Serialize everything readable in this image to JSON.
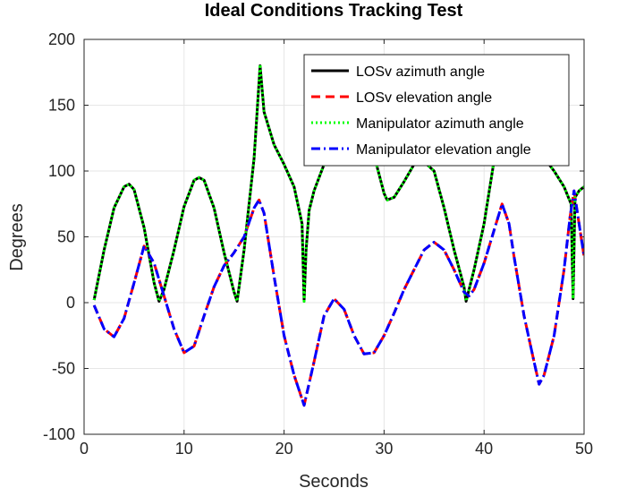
{
  "chart_data": {
    "type": "line",
    "title": "Ideal Conditions Tracking Test",
    "xlabel": "Seconds",
    "ylabel": "Degrees",
    "xlim": [
      0,
      50
    ],
    "ylim": [
      -100,
      200
    ],
    "xticks": [
      0,
      10,
      20,
      30,
      40,
      50
    ],
    "yticks": [
      -100,
      -50,
      0,
      50,
      100,
      150,
      200
    ],
    "grid": true,
    "legend_position": "top-right",
    "series": [
      {
        "name": "LOSv azimuth angle",
        "color": "#000000",
        "style": "solid",
        "x": [
          1,
          2,
          3,
          4,
          4.5,
          5,
          6,
          7,
          7.5,
          8,
          9,
          10,
          11,
          11.5,
          12,
          13,
          14,
          15,
          15.3,
          16,
          17,
          17.6,
          18,
          19,
          20,
          21,
          21.8,
          22,
          22.2,
          22.5,
          23,
          24,
          25,
          26,
          27,
          28,
          29,
          30,
          30.3,
          31,
          32,
          33,
          34,
          35,
          36,
          37,
          38,
          38.2,
          39,
          40,
          41,
          42,
          43,
          44,
          45,
          46,
          47,
          48,
          48.7,
          48.9,
          49.1,
          49.5,
          50
        ],
        "y": [
          2,
          40,
          72,
          88,
          90,
          86,
          57,
          15,
          1,
          10,
          40,
          73,
          93,
          95,
          93,
          72,
          38,
          8,
          1,
          40,
          110,
          180,
          145,
          120,
          105,
          88,
          60,
          1,
          40,
          70,
          85,
          105,
          125,
          140,
          150,
          140,
          112,
          83,
          78,
          80,
          92,
          105,
          107,
          100,
          72,
          40,
          12,
          1,
          25,
          60,
          108,
          128,
          140,
          130,
          118,
          110,
          100,
          88,
          75,
          3,
          80,
          85,
          88
        ]
      },
      {
        "name": "LOSv elevation angle",
        "color": "#ff0000",
        "style": "dashed",
        "x": [
          1,
          2,
          3,
          4,
          5,
          6,
          7,
          8,
          9,
          10,
          11,
          12,
          13,
          14,
          15,
          16,
          17,
          17.5,
          18,
          19,
          20,
          21,
          22,
          23,
          24,
          25,
          26,
          27,
          28,
          29,
          30,
          31,
          32,
          33,
          34,
          35,
          36,
          37,
          38,
          38.5,
          39,
          40,
          41,
          41.8,
          42.5,
          43,
          44,
          45,
          45.5,
          46,
          47,
          48,
          48.6,
          49,
          49.5,
          50
        ],
        "y": [
          -2,
          -20,
          -26,
          -12,
          15,
          43,
          30,
          5,
          -20,
          -38,
          -33,
          -10,
          12,
          28,
          38,
          50,
          72,
          78,
          68,
          20,
          -25,
          -55,
          -78,
          -45,
          -10,
          3,
          -5,
          -25,
          -39,
          -38,
          -25,
          -8,
          10,
          25,
          40,
          46,
          40,
          25,
          8,
          5,
          10,
          30,
          55,
          75,
          60,
          35,
          -10,
          -45,
          -62,
          -55,
          -25,
          25,
          65,
          85,
          60,
          35
        ]
      },
      {
        "name": "Manipulator azimuth angle",
        "color": "#00ff00",
        "style": "dotted",
        "x": [
          1,
          2,
          3,
          4,
          4.5,
          5,
          6,
          7,
          7.5,
          8,
          9,
          10,
          11,
          11.5,
          12,
          13,
          14,
          15,
          15.3,
          16,
          17,
          17.6,
          18,
          19,
          20,
          21,
          21.8,
          22,
          22.2,
          22.5,
          23,
          24,
          25,
          26,
          27,
          28,
          29,
          30,
          30.3,
          31,
          32,
          33,
          34,
          35,
          36,
          37,
          38,
          38.2,
          39,
          40,
          41,
          42,
          43,
          44,
          45,
          46,
          47,
          48,
          48.7,
          48.9,
          49.1,
          49.5,
          50
        ],
        "y": [
          2,
          40,
          72,
          88,
          90,
          86,
          57,
          15,
          1,
          10,
          40,
          73,
          93,
          95,
          93,
          72,
          38,
          8,
          1,
          40,
          110,
          181,
          145,
          120,
          105,
          88,
          60,
          1,
          40,
          70,
          85,
          105,
          125,
          140,
          150,
          140,
          112,
          83,
          78,
          80,
          92,
          105,
          107,
          100,
          72,
          40,
          12,
          1,
          25,
          60,
          108,
          128,
          140,
          130,
          118,
          110,
          100,
          88,
          75,
          3,
          80,
          85,
          88
        ]
      },
      {
        "name": "Manipulator elevation angle",
        "color": "#0000ff",
        "style": "dashdot",
        "x": [
          1,
          2,
          3,
          4,
          5,
          6,
          7,
          8,
          9,
          10,
          11,
          12,
          13,
          14,
          15,
          16,
          17,
          17.5,
          18,
          19,
          20,
          21,
          22,
          23,
          24,
          25,
          26,
          27,
          28,
          29,
          30,
          31,
          32,
          33,
          34,
          35,
          36,
          37,
          38,
          38.5,
          39,
          40,
          41,
          41.8,
          42.5,
          43,
          44,
          45,
          45.5,
          46,
          47,
          48,
          48.6,
          49,
          49.5,
          50
        ],
        "y": [
          -2,
          -20,
          -26,
          -12,
          15,
          43,
          30,
          5,
          -20,
          -38,
          -33,
          -10,
          12,
          28,
          38,
          50,
          72,
          78,
          68,
          20,
          -25,
          -55,
          -78,
          -45,
          -10,
          3,
          -5,
          -25,
          -39,
          -38,
          -25,
          -8,
          10,
          25,
          40,
          46,
          40,
          25,
          8,
          5,
          10,
          30,
          55,
          75,
          60,
          35,
          -10,
          -45,
          -62,
          -55,
          -25,
          25,
          65,
          85,
          60,
          35
        ]
      }
    ]
  }
}
